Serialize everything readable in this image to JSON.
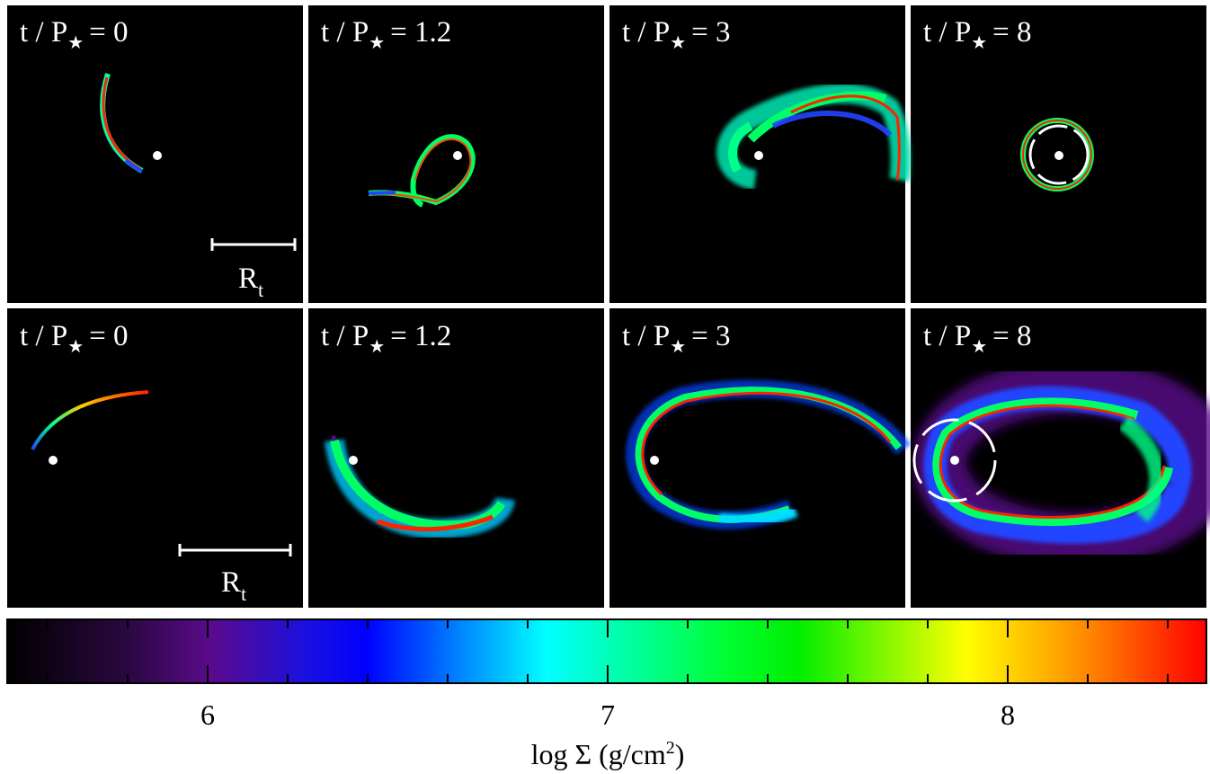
{
  "panels": {
    "top": [
      {
        "label_main": "t / P",
        "label_star": "★",
        "label_value": "= 0"
      },
      {
        "label_main": "t / P",
        "label_star": "★",
        "label_value": "= 1.2"
      },
      {
        "label_main": "t / P",
        "label_star": "★",
        "label_value": "= 3"
      },
      {
        "label_main": "t / P",
        "label_star": "★",
        "label_value": "= 8"
      }
    ],
    "bottom": [
      {
        "label_main": "t / P",
        "label_star": "★",
        "label_value": "= 0"
      },
      {
        "label_main": "t / P",
        "label_star": "★",
        "label_value": "= 1.2"
      },
      {
        "label_main": "t / P",
        "label_star": "★",
        "label_value": "= 3"
      },
      {
        "label_main": "t / P",
        "label_star": "★",
        "label_value": "= 8"
      }
    ]
  },
  "scale_bar": {
    "label_main": "R",
    "label_sub": "t"
  },
  "colorbar": {
    "ticks": [
      "6",
      "7",
      "8"
    ],
    "label_main": "log Σ  (g/cm",
    "label_sup": "2",
    "label_end": ")",
    "colors": [
      "#000000",
      "#5a0a8c",
      "#0000ff",
      "#00ffff",
      "#00ff00",
      "#ffff00",
      "#ff0000"
    ]
  },
  "colors": {
    "background": "#000000",
    "separator": "#ffffff",
    "black_hole": "#ffffff"
  }
}
